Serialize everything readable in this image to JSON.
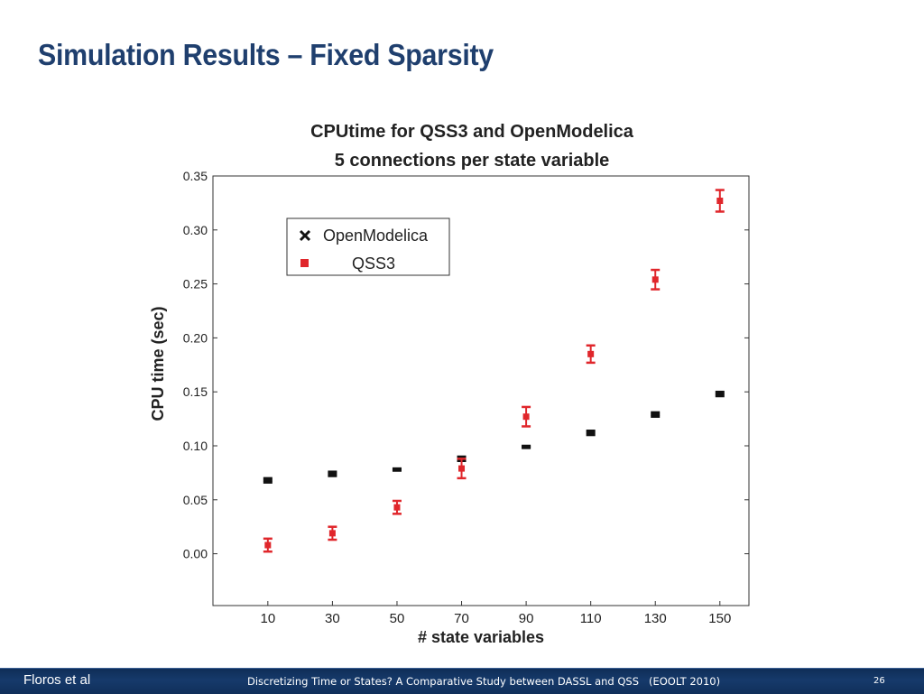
{
  "slide": {
    "title": "Simulation Results – Fixed Sparsity"
  },
  "footer": {
    "author": "Floros et al",
    "citation": "Discretizing Time or States? A Comparative Study between DASSL and QSS   (EOOLT 2010)",
    "page_number": "26"
  },
  "chart_data": {
    "type": "scatter",
    "title_line1": "CPUtime for QSS3 and OpenModelica",
    "title_line2": "5 connections per state variable",
    "xlabel": "# state variables",
    "ylabel": "CPU time (sec)",
    "x_ticks": [
      10,
      30,
      50,
      70,
      90,
      110,
      130,
      150
    ],
    "y_ticks": [
      "0.00",
      "0.05",
      "0.10",
      "0.15",
      "0.20",
      "0.25",
      "0.30",
      "0.35"
    ],
    "xlim": [
      -7,
      159
    ],
    "ylim": [
      -0.048,
      0.35
    ],
    "grid": false,
    "legend_position": "top-left",
    "series": [
      {
        "name": "OpenModelica",
        "marker": "x",
        "color": "#111111",
        "x": [
          10,
          30,
          50,
          70,
          90,
          110,
          130,
          150
        ],
        "y": [
          0.068,
          0.074,
          0.078,
          0.088,
          0.099,
          0.112,
          0.129,
          0.148
        ],
        "err": [
          0.002,
          0.002,
          0.001,
          0.002,
          0.001,
          0.002,
          0.002,
          0.002
        ]
      },
      {
        "name": "QSS3",
        "marker": "square",
        "color": "#e0262b",
        "x": [
          10,
          30,
          50,
          70,
          90,
          110,
          130,
          150
        ],
        "y": [
          0.008,
          0.019,
          0.043,
          0.079,
          0.127,
          0.185,
          0.254,
          0.327
        ],
        "err": [
          0.006,
          0.006,
          0.006,
          0.009,
          0.009,
          0.008,
          0.009,
          0.01
        ]
      }
    ]
  }
}
